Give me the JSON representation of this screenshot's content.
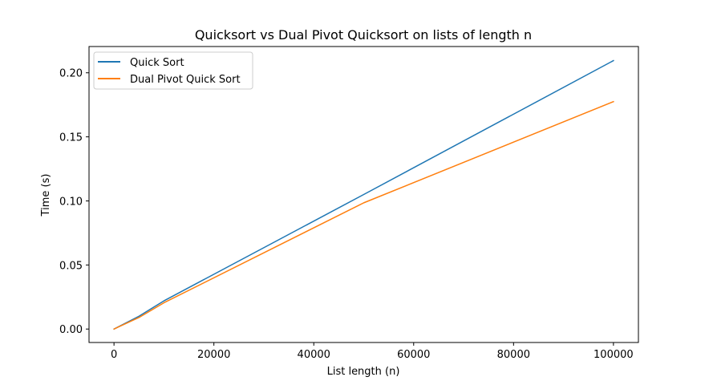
{
  "chart_data": {
    "type": "line",
    "title": "Quicksort vs Dual Pivot Quicksort on lists of length n",
    "xlabel": "List length (n)",
    "ylabel": "Time (s)",
    "xlim": [
      -5000,
      105000
    ],
    "ylim": [
      -0.0105,
      0.2205
    ],
    "xticks": [
      0,
      20000,
      40000,
      60000,
      80000,
      100000
    ],
    "xtick_labels": [
      "0",
      "20000",
      "40000",
      "60000",
      "80000",
      "100000"
    ],
    "yticks": [
      0.0,
      0.05,
      0.1,
      0.15,
      0.2
    ],
    "ytick_labels": [
      "0.00",
      "0.05",
      "0.10",
      "0.15",
      "0.20"
    ],
    "grid": false,
    "legend_position": "top-left",
    "x": [
      10,
      100,
      1000,
      5000,
      10000,
      50000,
      100000
    ],
    "series": [
      {
        "name": "Quick Sort",
        "color": "#1f77b4",
        "values": [
          0.0,
          0.0002,
          0.002,
          0.01,
          0.022,
          0.105,
          0.2095
        ]
      },
      {
        "name": "Dual Pivot Quick Sort",
        "color": "#ff7f0e",
        "values": [
          0.0,
          0.0002,
          0.0018,
          0.009,
          0.0205,
          0.0985,
          0.1775
        ]
      }
    ]
  }
}
